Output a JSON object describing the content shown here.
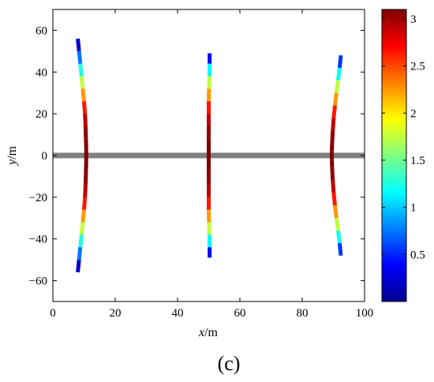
{
  "panel_label": "(c)",
  "chart_data": {
    "type": "scatter",
    "title": "",
    "xlabel_var": "x",
    "xlabel_unit": "/m",
    "ylabel_var": "y",
    "ylabel_unit": "/m",
    "xlim": [
      0,
      100
    ],
    "ylim": [
      -70,
      70
    ],
    "xticks": [
      0,
      20,
      40,
      60,
      80,
      100
    ],
    "yticks": [
      -60,
      -40,
      -20,
      0,
      20,
      40,
      60
    ],
    "colorbar": {
      "range": [
        0,
        3.1
      ],
      "ticks": [
        0.5,
        1,
        1.5,
        2,
        2.5,
        3
      ],
      "colormap": "jet"
    },
    "grid": false,
    "reference_band": {
      "y": 0,
      "color": "#808080"
    },
    "series": [
      {
        "points": [
          {
            "x": 8.0,
            "y": 56,
            "c": 0.0
          },
          {
            "x": 8.4,
            "y": 50,
            "c": 0.5
          },
          {
            "x": 8.8,
            "y": 44,
            "c": 1.0
          },
          {
            "x": 9.2,
            "y": 38,
            "c": 1.5
          },
          {
            "x": 9.6,
            "y": 32,
            "c": 2.0
          },
          {
            "x": 10.0,
            "y": 26,
            "c": 2.5
          },
          {
            "x": 10.3,
            "y": 20,
            "c": 2.8
          },
          {
            "x": 10.5,
            "y": 14,
            "c": 3.0
          },
          {
            "x": 10.6,
            "y": 8,
            "c": 3.1
          },
          {
            "x": 10.7,
            "y": 3,
            "c": 3.1
          },
          {
            "x": 10.7,
            "y": -3,
            "c": 3.1
          },
          {
            "x": 10.6,
            "y": -8,
            "c": 3.1
          },
          {
            "x": 10.5,
            "y": -14,
            "c": 3.0
          },
          {
            "x": 10.3,
            "y": -20,
            "c": 2.8
          },
          {
            "x": 10.0,
            "y": -26,
            "c": 2.5
          },
          {
            "x": 9.6,
            "y": -32,
            "c": 2.0
          },
          {
            "x": 9.2,
            "y": -38,
            "c": 1.5
          },
          {
            "x": 8.8,
            "y": -44,
            "c": 1.0
          },
          {
            "x": 8.4,
            "y": -50,
            "c": 0.5
          },
          {
            "x": 8.0,
            "y": -56,
            "c": 0.0
          }
        ]
      },
      {
        "points": [
          {
            "x": 50.3,
            "y": 49,
            "c": 0.0
          },
          {
            "x": 50.3,
            "y": 44,
            "c": 0.8
          },
          {
            "x": 50.2,
            "y": 38,
            "c": 1.5
          },
          {
            "x": 50.1,
            "y": 32,
            "c": 2.0
          },
          {
            "x": 50.0,
            "y": 26,
            "c": 2.5
          },
          {
            "x": 50.0,
            "y": 20,
            "c": 2.8
          },
          {
            "x": 50.0,
            "y": 14,
            "c": 3.0
          },
          {
            "x": 50.0,
            "y": 8,
            "c": 3.1
          },
          {
            "x": 50.0,
            "y": 3,
            "c": 3.1
          },
          {
            "x": 50.0,
            "y": -3,
            "c": 3.1
          },
          {
            "x": 50.0,
            "y": -8,
            "c": 3.1
          },
          {
            "x": 50.0,
            "y": -14,
            "c": 3.0
          },
          {
            "x": 50.0,
            "y": -20,
            "c": 2.8
          },
          {
            "x": 50.0,
            "y": -26,
            "c": 2.5
          },
          {
            "x": 50.1,
            "y": -32,
            "c": 2.0
          },
          {
            "x": 50.2,
            "y": -38,
            "c": 1.5
          },
          {
            "x": 50.3,
            "y": -44,
            "c": 0.8
          },
          {
            "x": 50.3,
            "y": -49,
            "c": 0.0
          }
        ]
      },
      {
        "points": [
          {
            "x": 92.4,
            "y": 48,
            "c": 0.2
          },
          {
            "x": 92.0,
            "y": 42,
            "c": 0.9
          },
          {
            "x": 91.5,
            "y": 36,
            "c": 1.5
          },
          {
            "x": 91.0,
            "y": 30,
            "c": 2.0
          },
          {
            "x": 90.5,
            "y": 24,
            "c": 2.5
          },
          {
            "x": 90.1,
            "y": 18,
            "c": 2.8
          },
          {
            "x": 89.8,
            "y": 12,
            "c": 3.0
          },
          {
            "x": 89.6,
            "y": 6,
            "c": 3.1
          },
          {
            "x": 89.5,
            "y": 2,
            "c": 3.1
          },
          {
            "x": 89.5,
            "y": -2,
            "c": 3.1
          },
          {
            "x": 89.6,
            "y": -6,
            "c": 3.1
          },
          {
            "x": 89.8,
            "y": -12,
            "c": 3.0
          },
          {
            "x": 90.1,
            "y": -18,
            "c": 2.8
          },
          {
            "x": 90.5,
            "y": -24,
            "c": 2.5
          },
          {
            "x": 91.0,
            "y": -30,
            "c": 2.0
          },
          {
            "x": 91.5,
            "y": -36,
            "c": 1.5
          },
          {
            "x": 92.0,
            "y": -42,
            "c": 0.9
          },
          {
            "x": 92.4,
            "y": -48,
            "c": 0.2
          }
        ]
      }
    ]
  }
}
